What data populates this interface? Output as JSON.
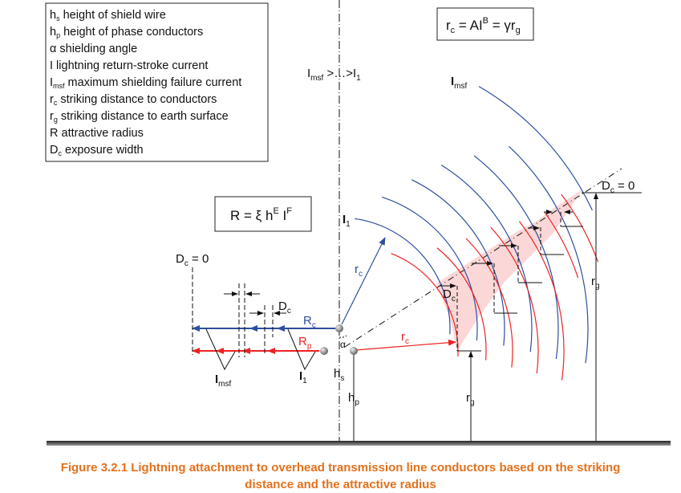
{
  "legend": {
    "items": [
      {
        "sym": "h",
        "sub": "s",
        "text": " height of shield wire"
      },
      {
        "sym": "h",
        "sub": "p",
        "text": " height of phase conductors"
      },
      {
        "sym": "α",
        "sub": "",
        "text": " shielding angle"
      },
      {
        "sym": "I",
        "sub": "",
        "text": " lightning return-stroke current"
      },
      {
        "sym": "I",
        "sub": "msf",
        "text": " maximum shielding failure current"
      },
      {
        "sym": "r",
        "sub": "c",
        "text": " striking distance to conductors"
      },
      {
        "sym": "r",
        "sub": "g",
        "text": " striking distance to earth surface"
      },
      {
        "sym": "R",
        "sub": "",
        "text": " attractive radius"
      },
      {
        "sym": "D",
        "sub": "c",
        "text": " exposure width"
      }
    ]
  },
  "formulas": {
    "striking": {
      "a": "r",
      "a_sub": "c",
      "b": " = AI",
      "b_sup": "B",
      "c": " = γr",
      "c_sub": "g"
    },
    "attractive": {
      "a": "R = ξ h",
      "a_sup": "E",
      "b": " I",
      "b_sup": "F"
    }
  },
  "labels": {
    "current_order": {
      "a": "I",
      "a_sub": "msf",
      "b": " >…>I",
      "b_sub": "1"
    },
    "imsf": {
      "t": "I",
      "sub": "msf"
    },
    "i1": {
      "t": "I",
      "sub": "1"
    },
    "rc": {
      "t": "r",
      "sub": "c"
    },
    "rg": {
      "t": "r",
      "sub": "g"
    },
    "Rc": {
      "t": "R",
      "sub": "c"
    },
    "Rp": {
      "t": "R",
      "sub": "p"
    },
    "Dc": {
      "t": "D",
      "sub": "c"
    },
    "Dc_zero": {
      "t": "D",
      "sub": "c",
      "rest": " = 0"
    },
    "hs": {
      "t": "h",
      "sub": "s"
    },
    "hp": {
      "t": "h",
      "sub": "p"
    },
    "alpha": "α"
  },
  "colors": {
    "blue": "#2d4ea0",
    "red": "#ee2222",
    "shade": "#fbd3d3",
    "caption": "#e2711d"
  },
  "caption": {
    "line1": "Figure 3.2.1 Lightning attachment to overhead transmission line conductors based on the striking",
    "line2": "distance and the attractive radius"
  }
}
